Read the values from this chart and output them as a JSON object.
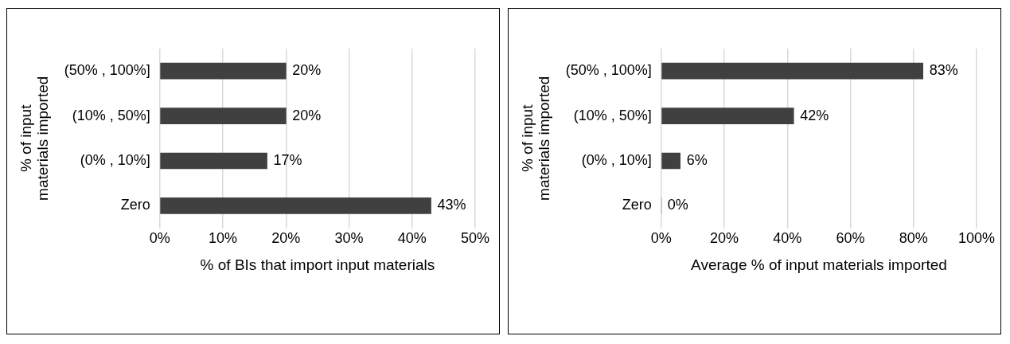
{
  "chart_data": [
    {
      "type": "bar",
      "orientation": "horizontal",
      "categories": [
        "(50% , 100%]",
        "(10% , 50%]",
        "(0% , 10%]",
        "Zero"
      ],
      "values": [
        20,
        20,
        17,
        43
      ],
      "value_labels": [
        "20%",
        "20%",
        "17%",
        "43%"
      ],
      "color": "#404040",
      "xlabel": "% of BIs that import input materials",
      "ylabel": "% of input materials imported",
      "xlim": [
        0,
        50
      ],
      "xticks": [
        {
          "value": 0,
          "label": "0%"
        },
        {
          "value": 10,
          "label": "10%"
        },
        {
          "value": 20,
          "label": "20%"
        },
        {
          "value": 30,
          "label": "30%"
        },
        {
          "value": 40,
          "label": "40%"
        },
        {
          "value": 50,
          "label": "50%"
        }
      ],
      "grid": "x",
      "legend": false
    },
    {
      "type": "bar",
      "orientation": "horizontal",
      "categories": [
        "(50% , 100%]",
        "(10% , 50%]",
        "(0% , 10%]",
        "Zero"
      ],
      "values": [
        83,
        42,
        6,
        0
      ],
      "value_labels": [
        "83%",
        "42%",
        "6%",
        "0%"
      ],
      "color": "#404040",
      "xlabel": "Average % of input materials imported",
      "ylabel": "% of input materials imported",
      "xlim": [
        0,
        100
      ],
      "xticks": [
        {
          "value": 0,
          "label": "0%"
        },
        {
          "value": 20,
          "label": "20%"
        },
        {
          "value": 40,
          "label": "40%"
        },
        {
          "value": 60,
          "label": "60%"
        },
        {
          "value": 80,
          "label": "80%"
        },
        {
          "value": 100,
          "label": "100%"
        }
      ],
      "grid": "x",
      "legend": false
    }
  ]
}
